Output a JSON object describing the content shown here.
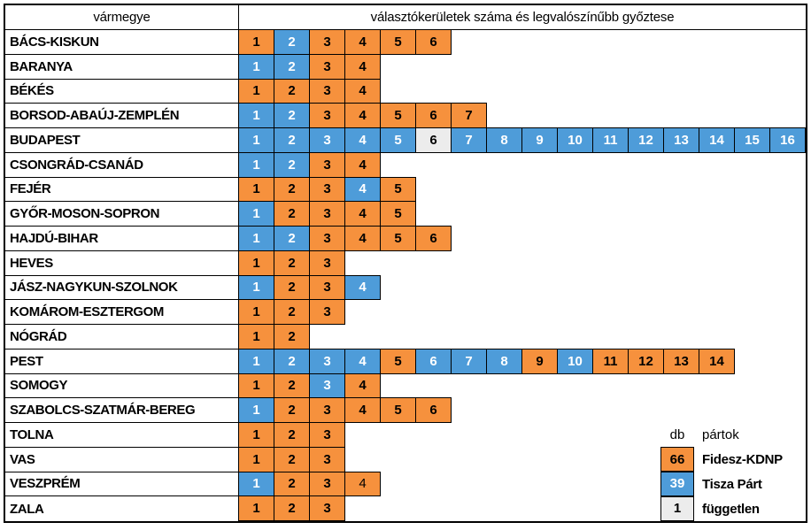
{
  "colors": {
    "fidesz": "#F6913D",
    "tisza": "#4E9CD9",
    "fuggetlen": "#ECECEC",
    "border": "#000000"
  },
  "header": {
    "county_col": "vármegye",
    "districts_col": "választókerületek száma és legvalószínűbb győztese"
  },
  "legend": {
    "count_header": "db",
    "party_header": "pártok",
    "items": [
      {
        "count": "66",
        "label": "Fidesz-KDNP",
        "party": "fidesz"
      },
      {
        "count": "39",
        "label": "Tisza Párt",
        "party": "tisza"
      },
      {
        "count": "1",
        "label": "független",
        "party": "fuggetlen"
      }
    ]
  },
  "chart_data": {
    "type": "table",
    "title": "választókerületek száma és legvalószínűbb győztese",
    "row_header": "vármegye",
    "parties": {
      "fidesz": "Fidesz-KDNP",
      "tisza": "Tisza Párt",
      "fuggetlen": "független"
    },
    "totals": {
      "fidesz": 66,
      "tisza": 39,
      "fuggetlen": 1
    },
    "rows": [
      {
        "county": "BÁCS-KISKUN",
        "winners": [
          "fidesz",
          "tisza",
          "fidesz",
          "fidesz",
          "fidesz",
          "fidesz"
        ]
      },
      {
        "county": "BARANYA",
        "winners": [
          "tisza",
          "tisza",
          "fidesz",
          "fidesz"
        ]
      },
      {
        "county": "BÉKÉS",
        "winners": [
          "fidesz",
          "fidesz",
          "fidesz",
          "fidesz"
        ]
      },
      {
        "county": "BORSOD-ABAÚJ-ZEMPLÉN",
        "winners": [
          "tisza",
          "tisza",
          "fidesz",
          "fidesz",
          "fidesz",
          "fidesz",
          "fidesz"
        ]
      },
      {
        "county": "BUDAPEST",
        "winners": [
          "tisza",
          "tisza",
          "tisza",
          "tisza",
          "tisza",
          "fuggetlen",
          "tisza",
          "tisza",
          "tisza",
          "tisza",
          "tisza",
          "tisza",
          "tisza",
          "tisza",
          "tisza",
          "tisza"
        ]
      },
      {
        "county": "CSONGRÁD-CSANÁD",
        "winners": [
          "tisza",
          "tisza",
          "fidesz",
          "fidesz"
        ]
      },
      {
        "county": "FEJÉR",
        "winners": [
          "fidesz",
          "fidesz",
          "fidesz",
          "tisza",
          "fidesz"
        ]
      },
      {
        "county": "GYŐR-MOSON-SOPRON",
        "winners": [
          "tisza",
          "fidesz",
          "fidesz",
          "fidesz",
          "fidesz"
        ]
      },
      {
        "county": "HAJDÚ-BIHAR",
        "winners": [
          "tisza",
          "tisza",
          "fidesz",
          "fidesz",
          "fidesz",
          "fidesz"
        ]
      },
      {
        "county": "HEVES",
        "winners": [
          "fidesz",
          "fidesz",
          "fidesz"
        ]
      },
      {
        "county": "JÁSZ-NAGYKUN-SZOLNOK",
        "winners": [
          "tisza",
          "fidesz",
          "fidesz",
          "tisza"
        ]
      },
      {
        "county": "KOMÁROM-ESZTERGOM",
        "winners": [
          "fidesz",
          "fidesz",
          "fidesz"
        ]
      },
      {
        "county": "NÓGRÁD",
        "winners": [
          "fidesz",
          "fidesz"
        ]
      },
      {
        "county": "PEST",
        "winners": [
          "tisza",
          "tisza",
          "tisza",
          "tisza",
          "fidesz",
          "tisza",
          "tisza",
          "tisza",
          "fidesz",
          "tisza",
          "fidesz",
          "fidesz",
          "fidesz",
          "fidesz"
        ]
      },
      {
        "county": "SOMOGY",
        "winners": [
          "fidesz",
          "fidesz",
          "tisza",
          "fidesz"
        ]
      },
      {
        "county": "SZABOLCS-SZATMÁR-BEREG",
        "winners": [
          "tisza",
          "fidesz",
          "fidesz",
          "fidesz",
          "fidesz",
          "fidesz"
        ]
      },
      {
        "county": "TOLNA",
        "winners": [
          "fidesz",
          "fidesz",
          "fidesz"
        ]
      },
      {
        "county": "VAS",
        "winners": [
          "fidesz",
          "fidesz",
          "fidesz"
        ]
      },
      {
        "county": "VESZPRÉM",
        "winners": [
          "tisza",
          "fidesz",
          "fidesz",
          "fidesz"
        ],
        "light_cells": [
          4
        ]
      },
      {
        "county": "ZALA",
        "winners": [
          "fidesz",
          "fidesz",
          "fidesz"
        ]
      }
    ]
  }
}
